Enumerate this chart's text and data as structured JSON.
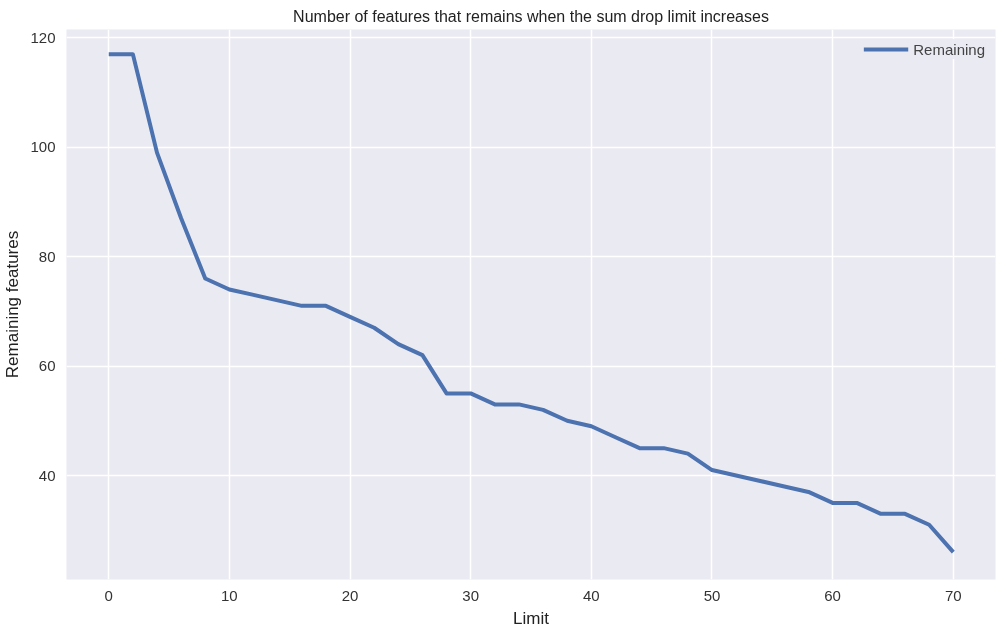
{
  "chart_data": {
    "type": "line",
    "title": "Number of features that remains when the sum drop limit increases",
    "xlabel": "Limit",
    "ylabel": "Remaining features",
    "x": [
      0,
      2,
      4,
      6,
      8,
      10,
      12,
      14,
      16,
      18,
      20,
      22,
      24,
      26,
      28,
      30,
      32,
      34,
      36,
      38,
      40,
      42,
      44,
      46,
      48,
      50,
      52,
      54,
      56,
      58,
      60,
      62,
      64,
      66,
      68,
      70
    ],
    "series": [
      {
        "name": "Remaining",
        "color": "#4c72b0",
        "values": [
          117,
          117,
          99,
          87,
          76,
          74,
          73,
          72,
          71,
          71,
          69,
          67,
          64,
          62,
          55,
          55,
          53,
          53,
          52,
          50,
          49,
          47,
          45,
          45,
          44,
          41,
          40,
          39,
          38,
          37,
          35,
          35,
          33,
          33,
          31,
          26
        ]
      }
    ],
    "xlim": [
      -3.5,
      73.5
    ],
    "ylim": [
      21,
      121.5
    ],
    "xticks": [
      0,
      10,
      20,
      30,
      40,
      50,
      60,
      70
    ],
    "yticks": [
      40,
      60,
      80,
      100,
      120
    ],
    "grid": true,
    "legend": "top right",
    "marker": "none",
    "line_style": "solid"
  }
}
